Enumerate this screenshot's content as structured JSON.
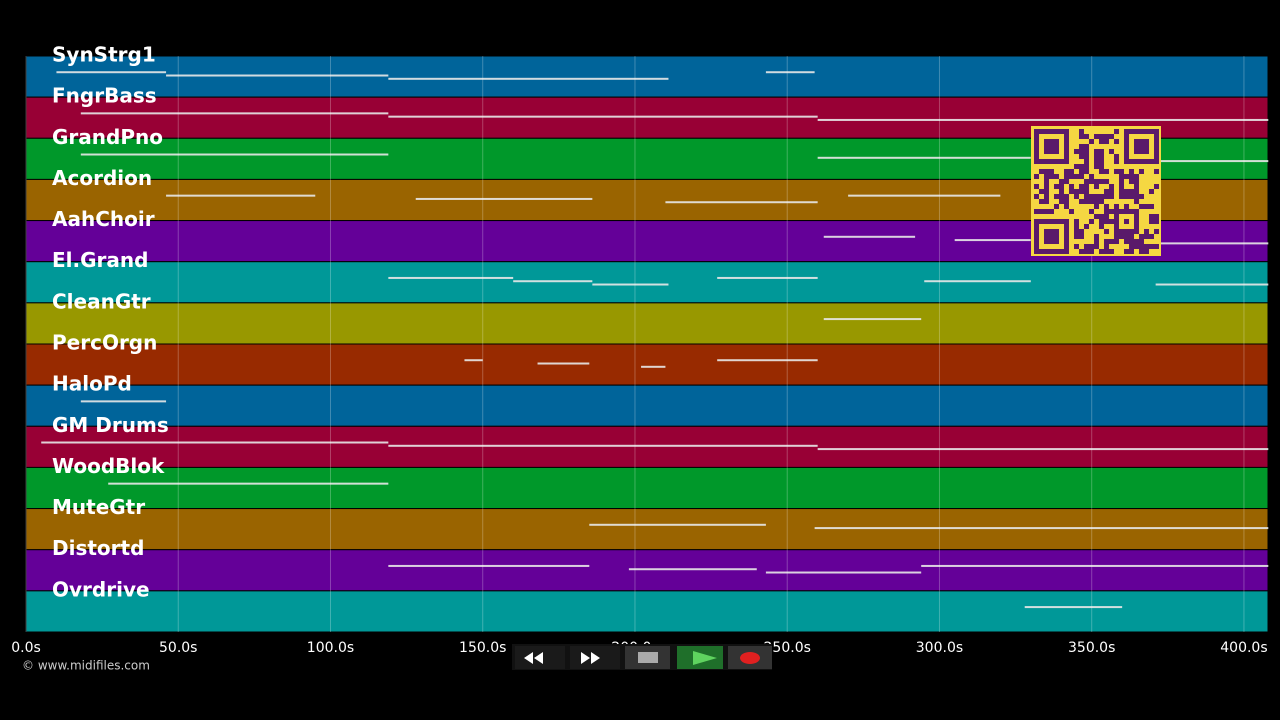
{
  "tracks": [
    {
      "name": "SynStrg1",
      "color": "#00649a",
      "notes": [
        [
          10,
          46
        ],
        [
          46,
          119
        ],
        [
          119,
          211
        ],
        [
          243,
          259
        ]
      ]
    },
    {
      "name": "FngrBass",
      "color": "#980035",
      "notes": [
        [
          18,
          119
        ],
        [
          119,
          260
        ],
        [
          260,
          408
        ]
      ]
    },
    {
      "name": "GrandPno",
      "color": "#00982a",
      "notes": [
        [
          18,
          119
        ],
        [
          260,
          330
        ],
        [
          371,
          408
        ]
      ]
    },
    {
      "name": "Acordion",
      "color": "#9a6400",
      "notes": [
        [
          46,
          95
        ],
        [
          128,
          186
        ],
        [
          210,
          260
        ],
        [
          270,
          320
        ]
      ]
    },
    {
      "name": "AahChoir",
      "color": "#640098",
      "notes": [
        [
          262,
          292
        ],
        [
          305,
          330
        ],
        [
          371,
          408
        ]
      ]
    },
    {
      "name": "El.Grand",
      "color": "#009898",
      "notes": [
        [
          119,
          160
        ],
        [
          160,
          186
        ],
        [
          186,
          211
        ],
        [
          227,
          260
        ],
        [
          295,
          330
        ],
        [
          371,
          408
        ]
      ]
    },
    {
      "name": "CleanGtr",
      "color": "#989800",
      "notes": [
        [
          262,
          294
        ]
      ]
    },
    {
      "name": "PercOrgn",
      "color": "#982a00",
      "notes": [
        [
          144,
          150
        ],
        [
          168,
          185
        ],
        [
          202,
          210
        ],
        [
          227,
          260
        ]
      ]
    },
    {
      "name": "HaloPd",
      "color": "#00649a",
      "notes": [
        [
          18,
          46
        ]
      ]
    },
    {
      "name": "GM Drums",
      "color": "#980035",
      "notes": [
        [
          5,
          119
        ],
        [
          119,
          260
        ],
        [
          260,
          408
        ]
      ]
    },
    {
      "name": "WoodBlok",
      "color": "#00982a",
      "notes": [
        [
          27,
          119
        ]
      ]
    },
    {
      "name": "MuteGtr",
      "color": "#9a6400",
      "notes": [
        [
          185,
          243
        ],
        [
          259,
          408
        ]
      ]
    },
    {
      "name": "Distortd",
      "color": "#640098",
      "notes": [
        [
          119,
          185
        ],
        [
          198,
          240
        ],
        [
          243,
          294
        ],
        [
          294,
          408
        ]
      ]
    },
    {
      "name": "Ovrdrive",
      "color": "#009898",
      "notes": [
        [
          328,
          360
        ]
      ]
    }
  ],
  "time_axis": {
    "xlim": [
      0,
      407.9
    ],
    "ticks": [
      {
        "value": 0,
        "label": "0.0s"
      },
      {
        "value": 50,
        "label": "50.0s"
      },
      {
        "value": 100,
        "label": "100.0s"
      },
      {
        "value": 150,
        "label": "150.0s"
      },
      {
        "value": 200,
        "label": "200.0s"
      },
      {
        "value": 250,
        "label": "250.0s"
      },
      {
        "value": 300,
        "label": "300.0s"
      },
      {
        "value": 350,
        "label": "350.0s"
      },
      {
        "value": 400,
        "label": "400.0s"
      }
    ]
  },
  "footer": "© www.midifiles.com"
}
